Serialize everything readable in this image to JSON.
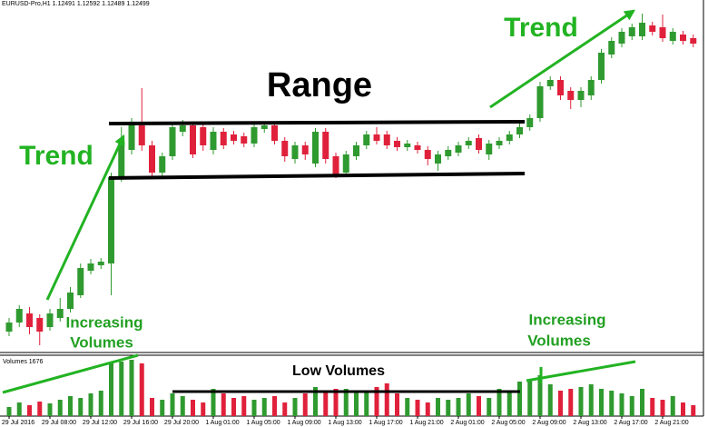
{
  "chart_data": {
    "type": "candlestick",
    "header": "EURUSD-Pro,H1 1.12491 1.12592 1.12489 1.12499",
    "volume_label": "Volumes 1676",
    "annotations": {
      "range": "Range",
      "trend_left": "Trend",
      "trend_right": "Trend",
      "increasing_left": [
        "Increasing",
        "Volumes"
      ],
      "increasing_right": [
        "Increasing",
        "Volumes"
      ],
      "low_volumes": "Low Volumes"
    },
    "categories": [
      "29 Jul 2016",
      null,
      null,
      null,
      "29 Jul 08:00",
      null,
      null,
      null,
      "29 Jul 12:00",
      null,
      null,
      null,
      "29 Jul 16:00",
      null,
      null,
      null,
      "29 Jul 20:00",
      null,
      null,
      null,
      "1 Aug 01:00",
      null,
      null,
      null,
      "1 Aug 05:00",
      null,
      null,
      null,
      "1 Aug 09:00",
      null,
      null,
      null,
      "1 Aug 13:00",
      null,
      null,
      null,
      "1 Aug 17:00",
      null,
      null,
      null,
      "1 Aug 21:00",
      null,
      null,
      null,
      "2 Aug 01:00",
      null,
      null,
      null,
      "2 Aug 05:00",
      null,
      null,
      null,
      "2 Aug 09:00",
      null,
      null,
      null,
      "2 Aug 13:00",
      null,
      null,
      null,
      "2 Aug 17:00",
      null,
      null,
      null,
      "2 Aug 21:00",
      null,
      null,
      null
    ],
    "open": [
      23,
      33,
      43,
      38,
      28,
      38,
      48,
      63,
      90,
      96,
      98,
      193,
      223,
      250,
      228,
      198,
      216,
      243,
      250,
      248,
      223,
      243,
      240,
      238,
      230,
      246,
      250,
      233,
      213,
      228,
      208,
      243,
      216,
      198,
      216,
      228,
      240,
      240,
      233,
      226,
      228,
      223,
      208,
      216,
      220,
      228,
      236,
      218,
      228,
      233,
      240,
      248,
      258,
      293,
      300,
      288,
      278,
      283,
      300,
      328,
      340,
      348,
      348,
      360,
      358,
      343,
      350,
      346
    ],
    "high": [
      38,
      52,
      50,
      42,
      48,
      60,
      72,
      98,
      103,
      104,
      198,
      248,
      258,
      291,
      233,
      220,
      252,
      256,
      254,
      252,
      248,
      247,
      244,
      242,
      252,
      254,
      254,
      237,
      232,
      232,
      247,
      247,
      220,
      222,
      232,
      244,
      248,
      244,
      237,
      234,
      232,
      227,
      222,
      227,
      232,
      237,
      240,
      234,
      237,
      244,
      252,
      262,
      298,
      304,
      304,
      292,
      292,
      304,
      334,
      347,
      357,
      362,
      373,
      364,
      372,
      357,
      354,
      350
    ],
    "low": [
      18,
      28,
      20,
      8,
      24,
      34,
      44,
      60,
      86,
      92,
      63,
      188,
      218,
      222,
      193,
      194,
      212,
      238,
      214,
      222,
      218,
      224,
      229,
      226,
      226,
      242,
      229,
      210,
      208,
      212,
      204,
      208,
      192,
      194,
      212,
      224,
      229,
      224,
      222,
      222,
      219,
      206,
      200,
      212,
      216,
      224,
      219,
      212,
      224,
      229,
      236,
      244,
      254,
      289,
      278,
      268,
      270,
      278,
      296,
      324,
      336,
      344,
      344,
      349,
      342,
      339,
      339,
      336
    ],
    "close": [
      33,
      48,
      28,
      23,
      43,
      48,
      66,
      93,
      98,
      100,
      193,
      233,
      253,
      228,
      198,
      216,
      248,
      250,
      218,
      228,
      243,
      228,
      233,
      230,
      248,
      250,
      233,
      216,
      228,
      218,
      243,
      213,
      196,
      218,
      228,
      240,
      233,
      228,
      226,
      230,
      223,
      213,
      218,
      223,
      228,
      233,
      223,
      230,
      233,
      240,
      248,
      258,
      293,
      300,
      283,
      278,
      288,
      300,
      330,
      343,
      353,
      358,
      363,
      353,
      346,
      353,
      343,
      340
    ],
    "volume": [
      10,
      15,
      12,
      16,
      14,
      18,
      22,
      20,
      25,
      28,
      58,
      60,
      62,
      58,
      20,
      18,
      25,
      22,
      18,
      15,
      30,
      25,
      20,
      22,
      18,
      20,
      22,
      15,
      20,
      25,
      32,
      28,
      30,
      30,
      28,
      26,
      32,
      36,
      25,
      20,
      18,
      15,
      20,
      18,
      20,
      25,
      22,
      20,
      30,
      28,
      38,
      40,
      45,
      35,
      28,
      30,
      32,
      35,
      30,
      28,
      25,
      22,
      30,
      20,
      18,
      22,
      15,
      12
    ],
    "ylim": [
      0,
      388
    ],
    "volume_ylim": [
      0,
      66
    ],
    "up_color": "#2f9a2f",
    "down_color": "#e0213b"
  }
}
